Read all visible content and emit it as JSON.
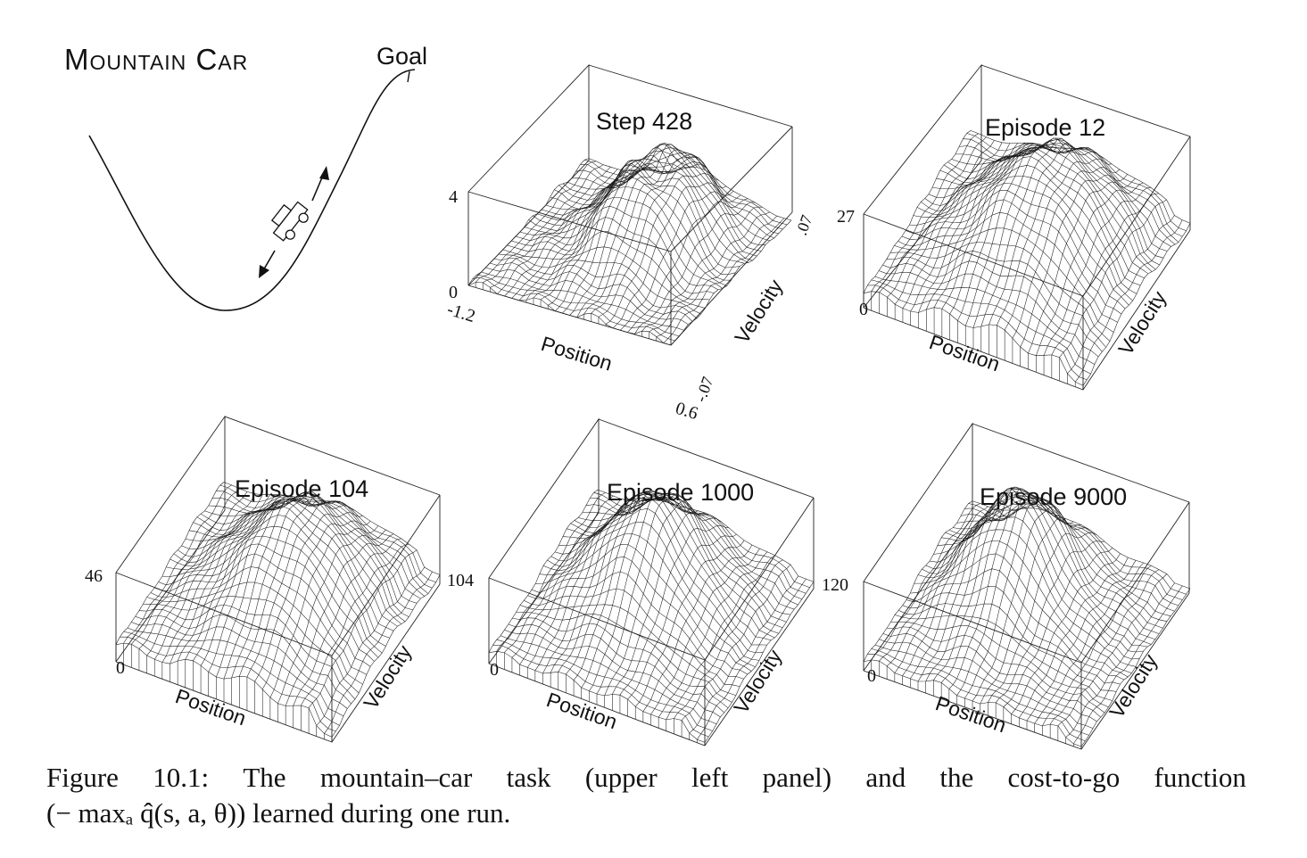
{
  "illustration": {
    "title": "Mountain Car",
    "goal_label": "Goal"
  },
  "panels": [
    {
      "id": "step428",
      "title": "Step 428",
      "z_max_label": "4",
      "z_min_label": "0",
      "x_label": "Position",
      "y_label": "Velocity",
      "x_min_label": "-1.2",
      "x_max_label": "0.6",
      "y_min_label": "-.07",
      "y_max_label": ".07"
    },
    {
      "id": "ep12",
      "title": "Episode 12",
      "z_max_label": "27",
      "z_min_label": "0",
      "x_label": "Position",
      "y_label": "Velocity"
    },
    {
      "id": "ep104",
      "title": "Episode 104",
      "z_max_label": "46",
      "z_min_label": "0",
      "x_label": "Position",
      "y_label": "Velocity"
    },
    {
      "id": "ep1000",
      "title": "Episode 1000",
      "z_max_label": "104",
      "z_min_label": "0",
      "x_label": "Position",
      "y_label": "Velocity"
    },
    {
      "id": "ep9000",
      "title": "Episode 9000",
      "z_max_label": "120",
      "z_min_label": "0",
      "x_label": "Position",
      "y_label": "Velocity"
    }
  ],
  "caption": {
    "line1": [
      "Figure",
      "10.1:",
      "The",
      "mountain–car",
      "task",
      "(upper",
      "left",
      "panel)",
      "and",
      "the",
      "cost-to-go",
      "function"
    ],
    "line2": "(− maxₐ q̂(s, a, θ)) learned during one run."
  }
}
